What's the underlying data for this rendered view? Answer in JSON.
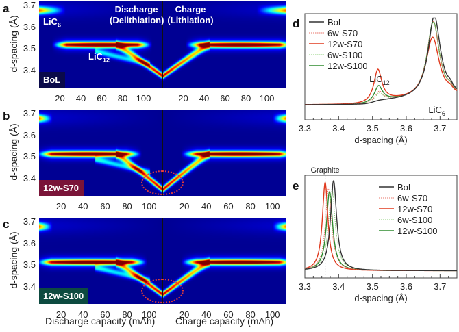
{
  "figure": {
    "panel_labels": [
      "a",
      "b",
      "c",
      "d",
      "e"
    ],
    "heatmap_section_titles": {
      "discharge": [
        "Discharge",
        "(Delithiation)"
      ],
      "charge": [
        "Charge",
        "(Lithiation)"
      ]
    },
    "heatmap_annotations": {
      "lic6": {
        "main": "LiC",
        "sub": "6"
      },
      "lic12": {
        "main": "LiC",
        "sub": "12"
      }
    },
    "heatmap_ylabel": "d-spacing (Å)",
    "heatmap_xlabel_discharge": "Discharge capacity (mAh)",
    "heatmap_xlabel_charge": "Charge capacity (mAh)"
  },
  "chart_data": [
    {
      "id": "a",
      "type": "heatmap",
      "sample_label": "BoL",
      "badge_color": "#0a0a4a",
      "ylabel": "d-spacing (Å)",
      "yticks": [
        "3.7",
        "3.6",
        "3.5",
        "3.4"
      ],
      "ylim": [
        3.32,
        3.72
      ],
      "discharge_xticks": [
        "20",
        "40",
        "60",
        "80",
        "100"
      ],
      "charge_xticks": [
        "20",
        "40",
        "60",
        "80",
        "100"
      ],
      "discharge_xlim": [
        0,
        118
      ],
      "charge_xlim": [
        0,
        118
      ],
      "highlight_ellipse": false,
      "features": {
        "lic6_discharge_end_capacity": 25,
        "lic6_charge_start_capacity": 90,
        "lic12_discharge_range": [
          20,
          100
        ],
        "lic12_charge_range": [
          30,
          118
        ],
        "lic12_peak_d": 3.52,
        "min_d_at_full_delithiation": 3.385
      }
    },
    {
      "id": "b",
      "type": "heatmap",
      "sample_label": "12w-S70",
      "badge_color": "#7a1438",
      "ylabel": "d-spacing (Å)",
      "yticks": [
        "3.7",
        "3.6",
        "3.5",
        "3.4"
      ],
      "ylim": [
        3.32,
        3.72
      ],
      "discharge_xticks": [
        "20",
        "40",
        "60",
        "80",
        "100"
      ],
      "charge_xticks": [
        "20",
        "40",
        "60",
        "80",
        "100"
      ],
      "discharge_xlim": [
        0,
        112
      ],
      "charge_xlim": [
        0,
        112
      ],
      "highlight_ellipse": true,
      "features": {
        "lic6_discharge_end_capacity": 12,
        "lic6_charge_start_capacity": 100,
        "lic12_discharge_range": [
          5,
          85
        ],
        "lic12_charge_range": [
          25,
          112
        ],
        "lic12_peak_d": 3.515,
        "min_d_at_full_delithiation": 3.36
      }
    },
    {
      "id": "c",
      "type": "heatmap",
      "sample_label": "12w-S100",
      "badge_color": "#0d4a40",
      "ylabel": "d-spacing (Å)",
      "yticks": [
        "3.7",
        "3.6",
        "3.5",
        "3.4"
      ],
      "ylim": [
        3.32,
        3.72
      ],
      "discharge_xticks": [
        "20",
        "40",
        "60",
        "80",
        "100"
      ],
      "charge_xticks": [
        "20",
        "40",
        "60",
        "80",
        "100"
      ],
      "discharge_xlim": [
        0,
        112
      ],
      "charge_xlim": [
        0,
        112
      ],
      "xlabel_left": "Discharge capacity (mAh)",
      "xlabel_right": "Charge capacity (mAh)",
      "highlight_ellipse": true,
      "features": {
        "lic6_discharge_end_capacity": 12,
        "lic6_charge_start_capacity": 100,
        "lic12_discharge_range": [
          5,
          90
        ],
        "lic12_charge_range": [
          25,
          112
        ],
        "lic12_peak_d": 3.515,
        "min_d_at_full_delithiation": 3.375
      }
    },
    {
      "id": "d",
      "type": "line",
      "title": "",
      "xlabel": "d-spacing (Å)",
      "ylabel": "",
      "xlim": [
        3.3,
        3.75
      ],
      "xticks": [
        "3.3",
        "3.4",
        "3.5",
        "3.6",
        "3.7"
      ],
      "legend_position": "top-left",
      "annotations": [
        {
          "main": "LiC",
          "sub": "12",
          "x": 3.515
        },
        {
          "main": "LiC",
          "sub": "6",
          "x": 3.69
        }
      ],
      "series": [
        {
          "name": "BoL",
          "color": "#333333",
          "style": "solid",
          "peaks": [
            {
              "center": 3.683,
              "height": 1.0,
              "width": 0.022
            },
            {
              "center": 3.73,
              "height": 0.05,
              "width": 0.01
            }
          ],
          "baseline_step": 0.04
        },
        {
          "name": "6w-S70",
          "color": "#e8756a",
          "style": "dotted",
          "peaks": [
            {
              "center": 3.52,
              "height": 0.11,
              "width": 0.014
            },
            {
              "center": 3.68,
              "height": 0.93,
              "width": 0.022
            },
            {
              "center": 3.73,
              "height": 0.05,
              "width": 0.01
            }
          ],
          "baseline_step": 0.04
        },
        {
          "name": "12w-S70",
          "color": "#e03a1e",
          "style": "solid",
          "peaks": [
            {
              "center": 3.516,
              "height": 0.38,
              "width": 0.014
            },
            {
              "center": 3.678,
              "height": 0.74,
              "width": 0.024
            },
            {
              "center": 3.73,
              "height": 0.04,
              "width": 0.01
            }
          ],
          "baseline_step": 0.04
        },
        {
          "name": "6w-S100",
          "color": "#8ccf7a",
          "style": "dotted",
          "peaks": [
            {
              "center": 3.52,
              "height": 0.09,
              "width": 0.014
            },
            {
              "center": 3.68,
              "height": 0.92,
              "width": 0.022
            },
            {
              "center": 3.73,
              "height": 0.05,
              "width": 0.01
            }
          ],
          "baseline_step": 0.04
        },
        {
          "name": "12w-S100",
          "color": "#2e8b2e",
          "style": "solid",
          "peaks": [
            {
              "center": 3.518,
              "height": 0.18,
              "width": 0.014
            },
            {
              "center": 3.68,
              "height": 0.93,
              "width": 0.022
            },
            {
              "center": 3.73,
              "height": 0.05,
              "width": 0.01
            }
          ],
          "baseline_step": 0.04
        }
      ]
    },
    {
      "id": "e",
      "type": "line",
      "title": "",
      "xlabel": "d-spacing (Å)",
      "ylabel": "",
      "xlim": [
        3.3,
        3.75
      ],
      "xticks": [
        "3.3",
        "3.4",
        "3.5",
        "3.6",
        "3.7"
      ],
      "legend_position": "top-right",
      "reference_line": {
        "label": "Graphite",
        "x": 3.36
      },
      "series": [
        {
          "name": "BoL",
          "color": "#333333",
          "style": "solid",
          "peaks": [
            {
              "center": 3.385,
              "height": 1.0,
              "width": 0.011
            }
          ]
        },
        {
          "name": "6w-S70",
          "color": "#e8756a",
          "style": "dotted",
          "peaks": [
            {
              "center": 3.37,
              "height": 0.91,
              "width": 0.011
            }
          ]
        },
        {
          "name": "12w-S70",
          "color": "#e03a1e",
          "style": "solid",
          "peaks": [
            {
              "center": 3.36,
              "height": 0.98,
              "width": 0.01
            }
          ]
        },
        {
          "name": "6w-S100",
          "color": "#8ccf7a",
          "style": "dotted",
          "peaks": [
            {
              "center": 3.38,
              "height": 0.9,
              "width": 0.012
            }
          ]
        },
        {
          "name": "12w-S100",
          "color": "#2e8b2e",
          "style": "solid",
          "peaks": [
            {
              "center": 3.373,
              "height": 0.88,
              "width": 0.011
            }
          ]
        }
      ]
    }
  ]
}
